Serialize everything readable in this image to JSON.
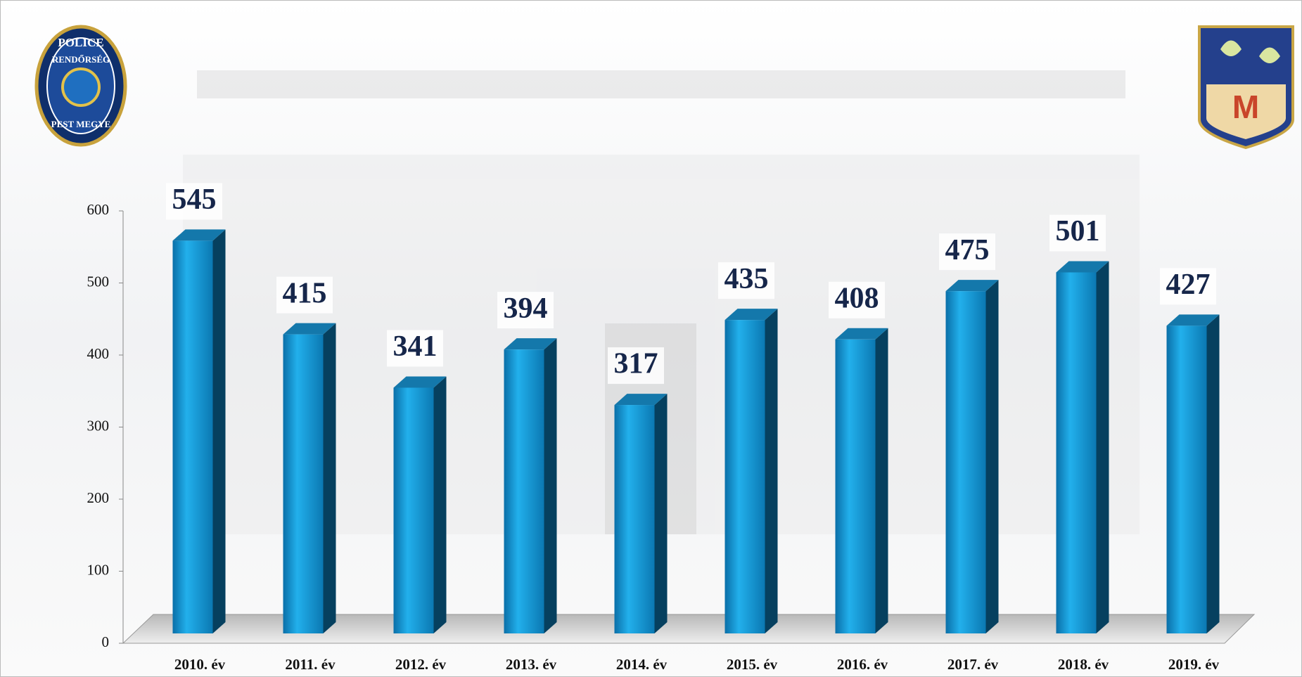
{
  "chart_data": {
    "type": "bar3d",
    "categories": [
      "2010. év",
      "2011. év",
      "2012. év",
      "2013. év",
      "2014. év",
      "2015. év",
      "2016. év",
      "2017. év",
      "2018. év",
      "2019. év"
    ],
    "values": [
      545,
      415,
      341,
      394,
      317,
      435,
      408,
      475,
      501,
      427
    ],
    "color": "#0f8fcf",
    "ylim": [
      0,
      600
    ],
    "yticks": [
      0,
      100,
      200,
      300,
      400,
      500,
      600
    ]
  },
  "police_badge": {
    "top": "POLICE",
    "middle": "RENDŐRSÉG",
    "bottom": "PEST MEGYE"
  },
  "crest": {
    "letter": "M"
  }
}
